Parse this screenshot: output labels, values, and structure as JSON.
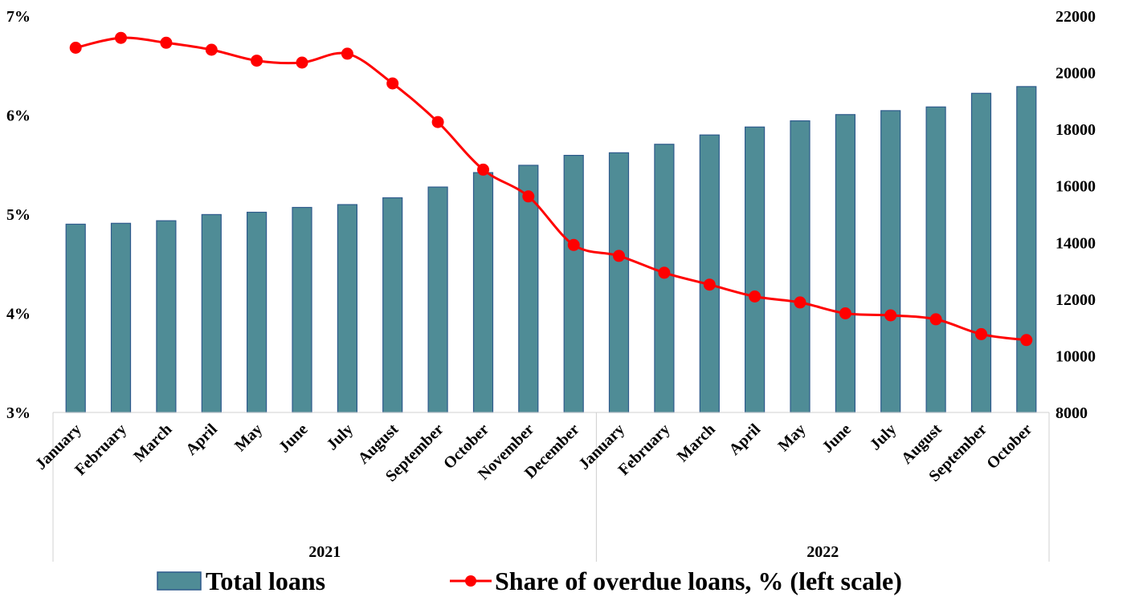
{
  "chart_data": {
    "type": "bar+line",
    "categories": [
      "January",
      "February",
      "March",
      "April",
      "May",
      "June",
      "July",
      "August",
      "September",
      "October",
      "November",
      "December",
      "January",
      "February",
      "March",
      "April",
      "May",
      "June",
      "July",
      "August",
      "September",
      "October"
    ],
    "groups": [
      {
        "label": "2021",
        "count": 12
      },
      {
        "label": "2022",
        "count": 10
      }
    ],
    "series": [
      {
        "name": "Total loans",
        "kind": "bar",
        "axis": "right",
        "color": "#4f8c96",
        "values": [
          14650,
          14680,
          14770,
          14990,
          15070,
          15240,
          15340,
          15580,
          15960,
          16470,
          16730,
          17080,
          17170,
          17470,
          17800,
          18080,
          18300,
          18520,
          18660,
          18790,
          19270,
          19510
        ]
      },
      {
        "name": "Share of overdue loans, % (left scale)",
        "kind": "line",
        "axis": "left",
        "color": "#ff0000",
        "values": [
          6.68,
          6.78,
          6.73,
          6.66,
          6.55,
          6.53,
          6.62,
          6.32,
          5.93,
          5.45,
          5.18,
          4.69,
          4.58,
          4.41,
          4.29,
          4.17,
          4.11,
          4.0,
          3.98,
          3.94,
          3.79,
          3.73
        ]
      }
    ],
    "y_left": {
      "min": 3,
      "max": 7,
      "ticks": [
        3,
        4,
        5,
        6,
        7
      ],
      "suffix": "%"
    },
    "y_right": {
      "min": 8000,
      "max": 22000,
      "ticks": [
        8000,
        10000,
        12000,
        14000,
        16000,
        18000,
        20000,
        22000
      ]
    },
    "legend_position": "bottom",
    "grid": false
  }
}
